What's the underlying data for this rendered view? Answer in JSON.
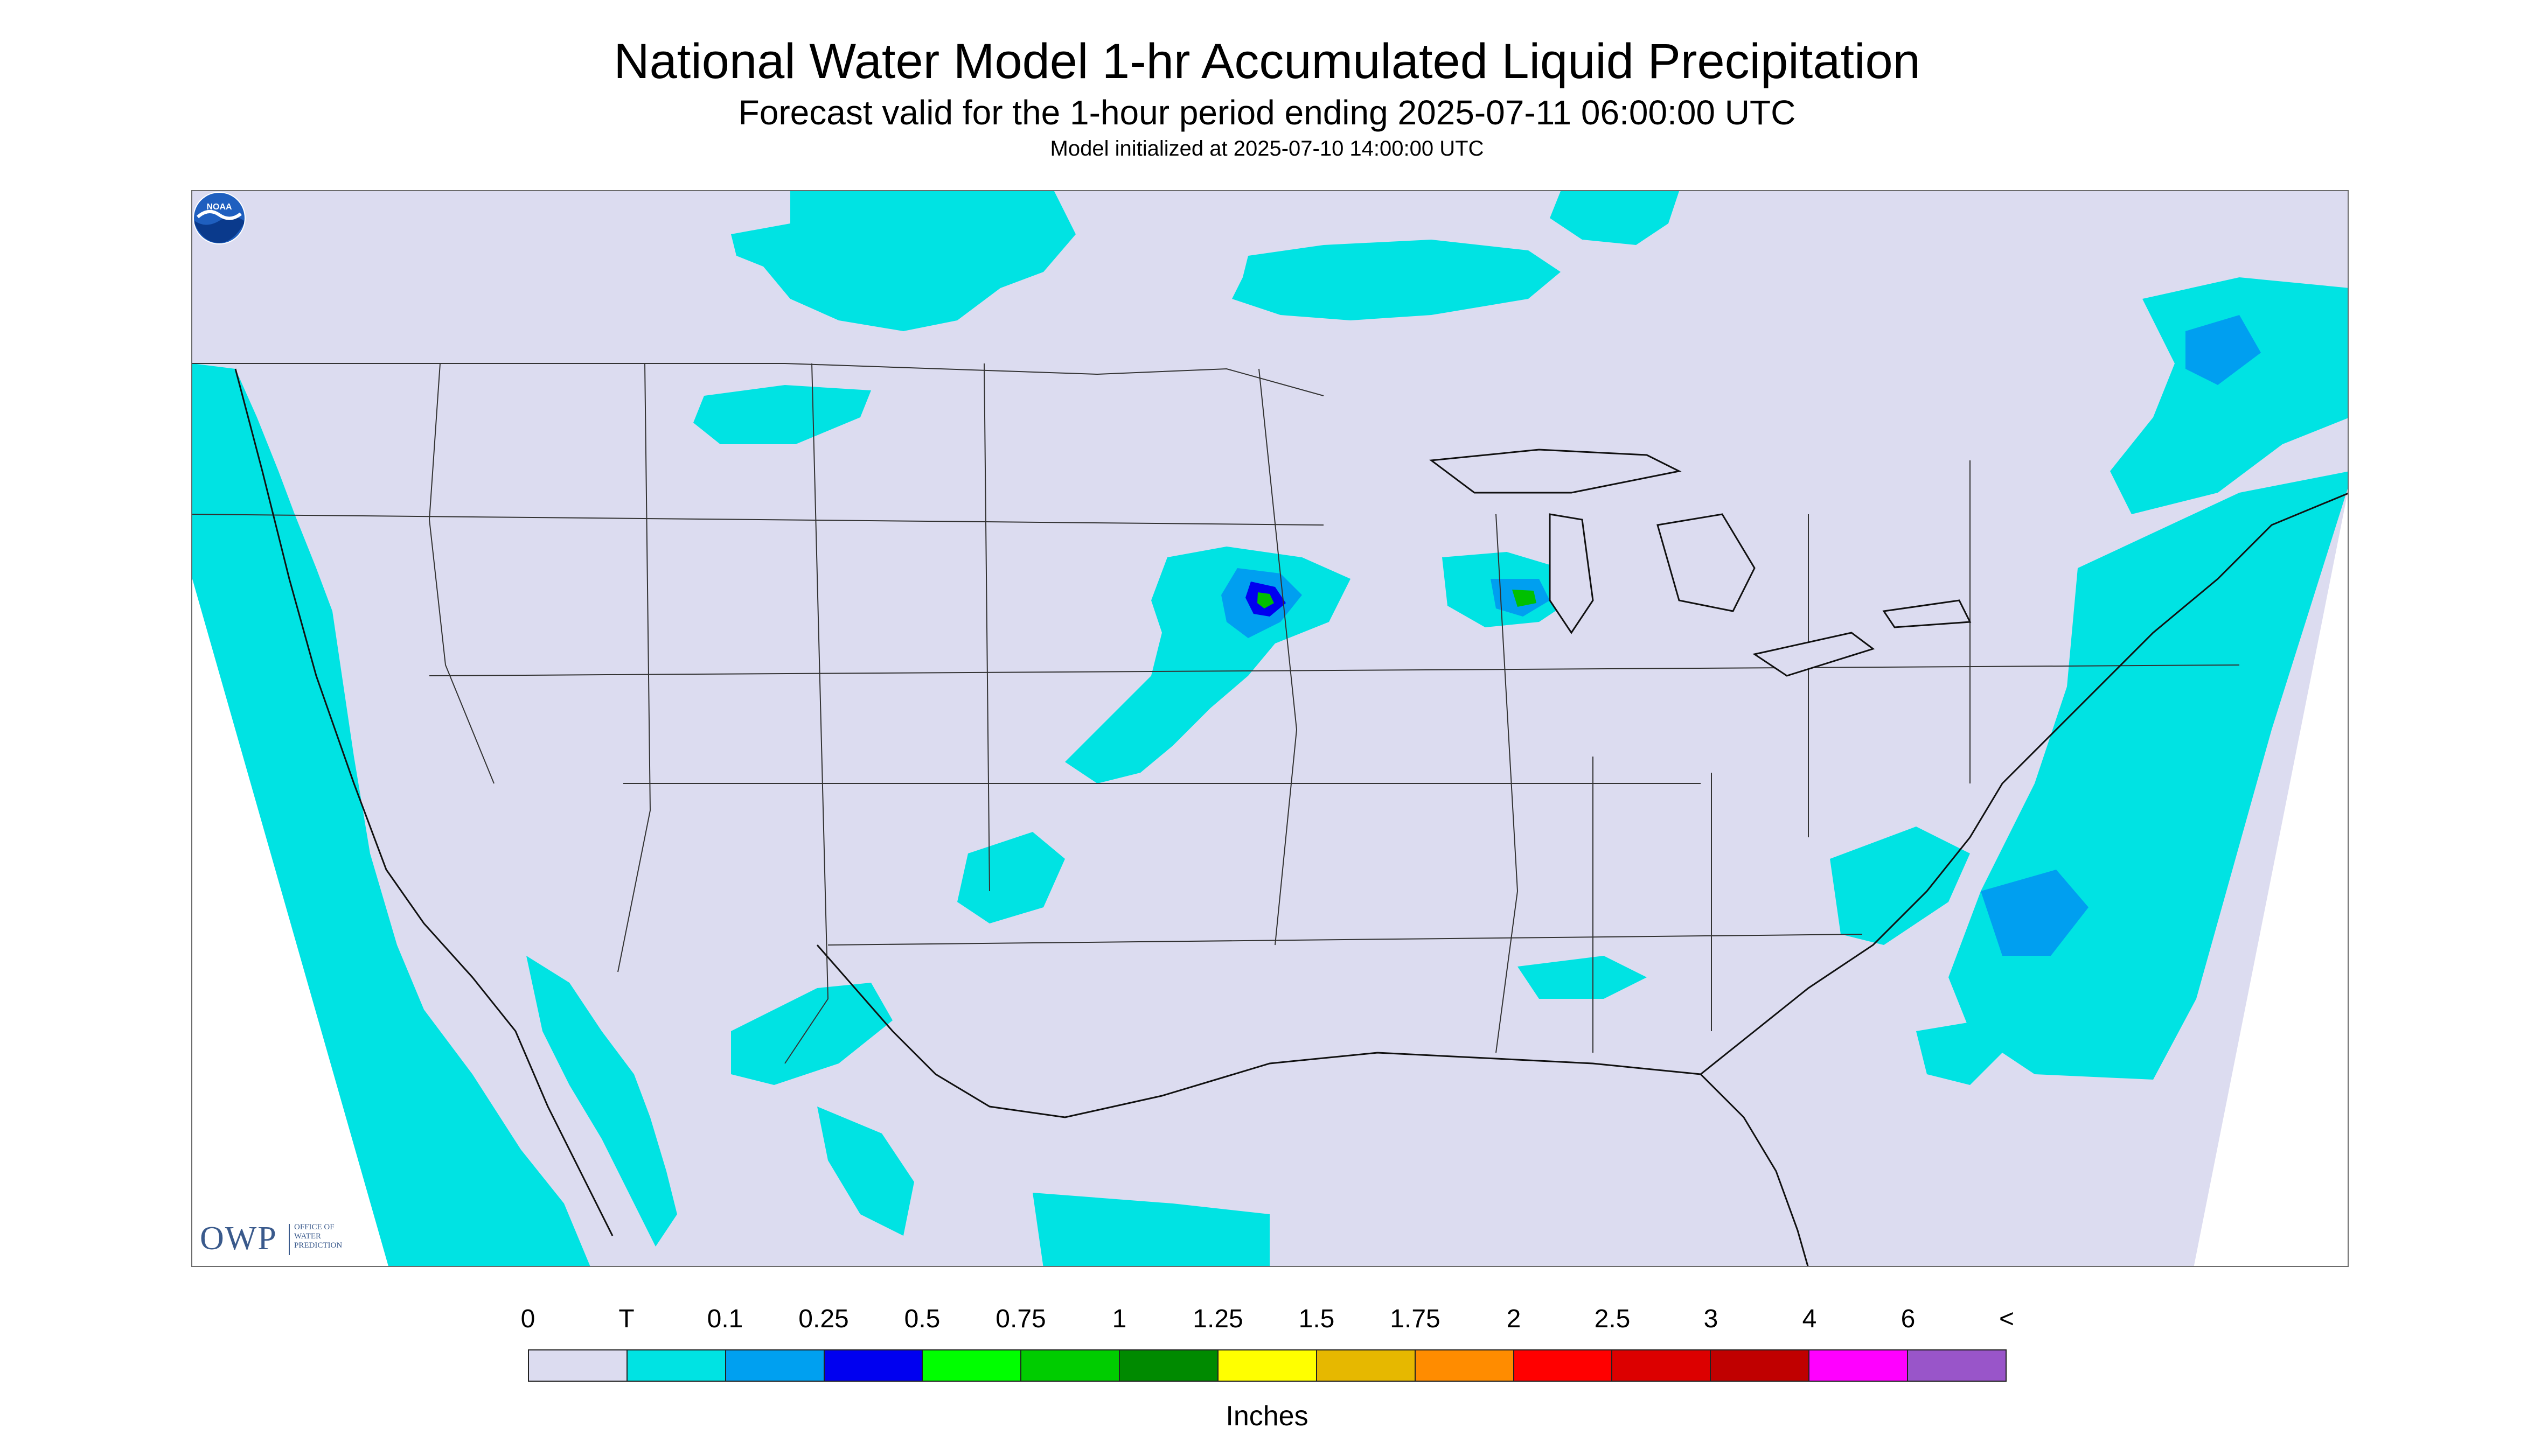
{
  "header": {
    "title": "National Water Model 1-hr Accumulated Liquid Precipitation",
    "subtitle": "Forecast valid for the 1-hour period ending 2025-07-11 06:00:00 UTC",
    "init": "Model initialized at 2025-07-10 14:00:00 UTC"
  },
  "colors": {
    "map_fill": "#dcdcf0",
    "boundary": "#333333",
    "precip_trace": "#00e3e3",
    "precip_light": "#009ff0",
    "precip_blue": "#0000f0",
    "precip_green": "#00c000"
  },
  "logos": {
    "owp_abbrev": "OWP",
    "owp_full_1": "OFFICE OF",
    "owp_full_2": "WATER",
    "owp_full_3": "PREDICTION",
    "noaa": "NOAA"
  },
  "legend": {
    "labels": [
      "0",
      "T",
      "0.1",
      "0.25",
      "0.5",
      "0.75",
      "1",
      "1.25",
      "1.5",
      "1.75",
      "2",
      "2.5",
      "3",
      "4",
      "6",
      "<"
    ],
    "colors": [
      "#dcdcf0",
      "#00e3e3",
      "#00a0f0",
      "#0000f0",
      "#00ff00",
      "#00cc00",
      "#008a00",
      "#ffff00",
      "#e6b800",
      "#ff8c00",
      "#ff0000",
      "#dc0000",
      "#c00000",
      "#ff00ff",
      "#9955c9"
    ],
    "units": "Inches"
  }
}
